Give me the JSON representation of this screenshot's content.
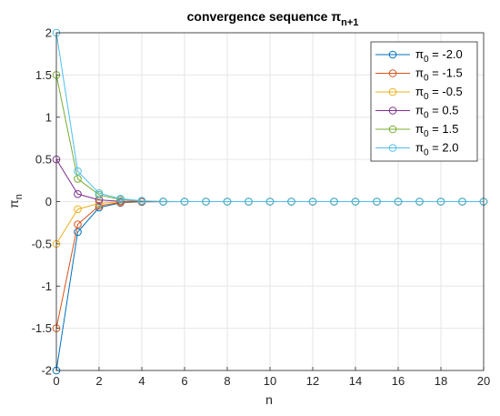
{
  "chart_data": {
    "type": "line",
    "title_main": "convergence sequence π",
    "title_sub": "n+1",
    "xlabel": "n",
    "ylabel_main": "π",
    "ylabel_sub": "n",
    "xlim": [
      0,
      20
    ],
    "ylim": [
      -2,
      2
    ],
    "xticks": [
      "0",
      "2",
      "4",
      "6",
      "8",
      "10",
      "12",
      "14",
      "16",
      "18",
      "20"
    ],
    "yticks": [
      "-2",
      "-1.5",
      "-1",
      "-0.5",
      "0",
      "0.5",
      "1",
      "1.5",
      "2"
    ],
    "grid": true,
    "legend_position": "top-right",
    "x": [
      0,
      1,
      2,
      3,
      4,
      5,
      6,
      7,
      8,
      9,
      10,
      11,
      12,
      13,
      14,
      15,
      16,
      17,
      18,
      19,
      20
    ],
    "series": [
      {
        "label_main": "π",
        "label_sub": "0",
        "label_rest": " = -2.0",
        "color": "#0072BD",
        "values": [
          -2.0,
          -0.36,
          -0.07,
          -0.015,
          -0.003,
          -0.001,
          0,
          0,
          0,
          0,
          0,
          0,
          0,
          0,
          0,
          0,
          0,
          0,
          0,
          0,
          0
        ]
      },
      {
        "label_main": "π",
        "label_sub": "0",
        "label_rest": " = -1.5",
        "color": "#D95319",
        "values": [
          -1.5,
          -0.27,
          -0.05,
          -0.01,
          -0.002,
          0,
          0,
          0,
          0,
          0,
          0,
          0,
          0,
          0,
          0,
          0,
          0,
          0,
          0,
          0,
          0
        ]
      },
      {
        "label_main": "π",
        "label_sub": "0",
        "label_rest": " = -0.5",
        "color": "#EDB120",
        "values": [
          -0.5,
          -0.09,
          -0.02,
          -0.004,
          -0.001,
          0,
          0,
          0,
          0,
          0,
          0,
          0,
          0,
          0,
          0,
          0,
          0,
          0,
          0,
          0,
          0
        ]
      },
      {
        "label_main": "π",
        "label_sub": "0",
        "label_rest": " = 0.5",
        "color": "#7E2F8E",
        "values": [
          0.5,
          0.09,
          0.02,
          0.004,
          0.001,
          0,
          0,
          0,
          0,
          0,
          0,
          0,
          0,
          0,
          0,
          0,
          0,
          0,
          0,
          0,
          0
        ]
      },
      {
        "label_main": "π",
        "label_sub": "0",
        "label_rest": " = 1.5",
        "color": "#77AC30",
        "values": [
          1.5,
          0.27,
          0.08,
          0.025,
          0.006,
          0.001,
          0,
          0,
          0,
          0,
          0,
          0,
          0,
          0,
          0,
          0,
          0,
          0,
          0,
          0,
          0
        ]
      },
      {
        "label_main": "π",
        "label_sub": "0",
        "label_rest": " = 2.0",
        "color": "#4DBEEE",
        "values": [
          2.0,
          0.36,
          0.1,
          0.035,
          0.01,
          0.002,
          0,
          0,
          0,
          0,
          0,
          0,
          0,
          0,
          0,
          0,
          0,
          0,
          0,
          0,
          0
        ]
      }
    ]
  }
}
